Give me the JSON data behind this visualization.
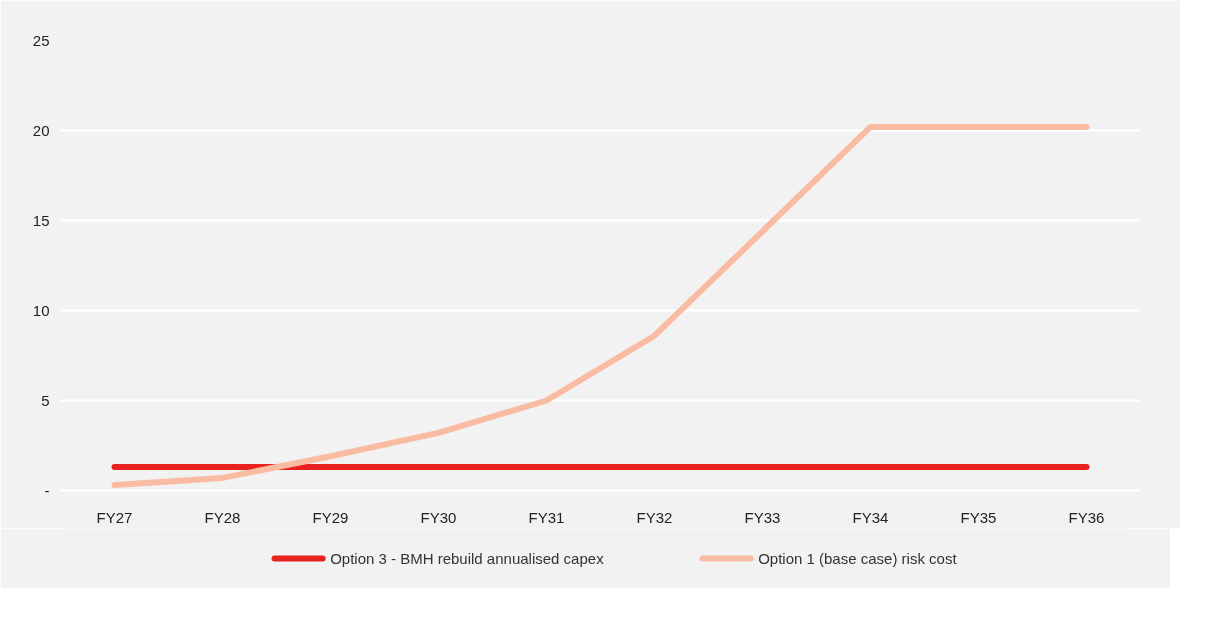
{
  "chart_data": {
    "type": "line",
    "categories": [
      "FY27",
      "FY28",
      "FY29",
      "FY30",
      "FY31",
      "FY32",
      "FY33",
      "FY34",
      "FY35",
      "FY36"
    ],
    "series": [
      {
        "name": "Option 3 - BMH rebuild annualised capex",
        "color": "#e8221f",
        "values": [
          1.3,
          1.3,
          1.3,
          1.3,
          1.3,
          1.3,
          1.3,
          1.3,
          1.3,
          1.3
        ]
      },
      {
        "name": "Option 1 (base case) risk cost",
        "color": "#f9bba2",
        "values": [
          0.3,
          0.7,
          1.9,
          3.2,
          5.0,
          8.6,
          14.4,
          20.2,
          20.2,
          20.2
        ]
      }
    ],
    "ylim": [
      0,
      25
    ],
    "yticks": [
      {
        "value": 0,
        "label": "-"
      },
      5,
      10,
      15,
      20,
      25
    ],
    "grid": "y",
    "legend": "bottom",
    "line_style": "solid"
  }
}
